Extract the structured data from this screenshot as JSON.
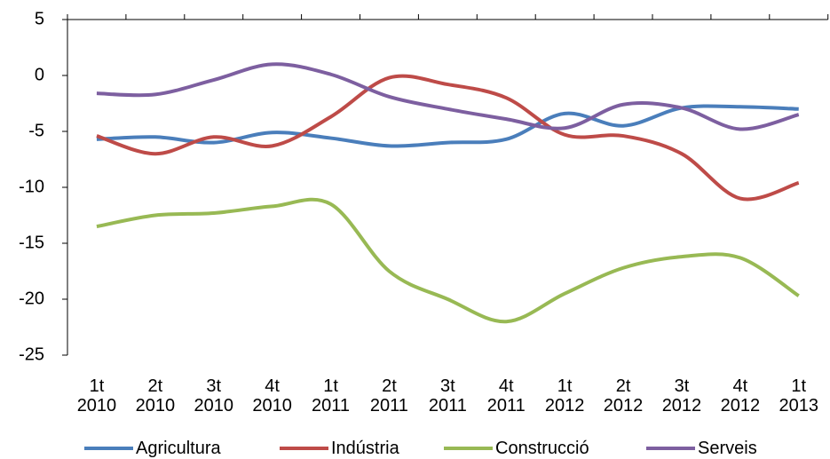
{
  "chart_data": {
    "type": "line",
    "categories": [
      "1t 2010",
      "2t 2010",
      "3t 2010",
      "4t 2010",
      "1t 2011",
      "2t 2011",
      "3t 2011",
      "4t 2011",
      "1t 2012",
      "2t 2012",
      "3t 2012",
      "4t 2012",
      "1t 2013"
    ],
    "series": [
      {
        "name": "Agricultura",
        "color": "#4a7ebb",
        "values": [
          -5.7,
          -5.5,
          -6.0,
          -5.1,
          -5.6,
          -6.3,
          -6.0,
          -5.7,
          -3.4,
          -4.5,
          -2.9,
          -2.8,
          -3.0
        ]
      },
      {
        "name": "Indústria",
        "color": "#be4b48",
        "values": [
          -5.4,
          -7.0,
          -5.5,
          -6.3,
          -3.7,
          -0.2,
          -0.8,
          -2.0,
          -5.3,
          -5.4,
          -7.0,
          -11.0,
          -9.6
        ]
      },
      {
        "name": "Construcció",
        "color": "#98b954",
        "values": [
          -13.5,
          -12.5,
          -12.3,
          -11.7,
          -11.5,
          -17.5,
          -20.0,
          -22.0,
          -19.5,
          -17.2,
          -16.2,
          -16.3,
          -19.7
        ]
      },
      {
        "name": "Serveis",
        "color": "#7d5fa0",
        "values": [
          -1.6,
          -1.7,
          -0.4,
          1.0,
          0.1,
          -1.9,
          -3.0,
          -3.9,
          -4.7,
          -2.6,
          -2.9,
          -4.8,
          -3.5
        ]
      }
    ],
    "ylim": [
      -25,
      5
    ],
    "yticks": [
      5,
      0,
      -5,
      -10,
      -15,
      -20,
      -25
    ],
    "grid": false,
    "legend": "bottom"
  }
}
